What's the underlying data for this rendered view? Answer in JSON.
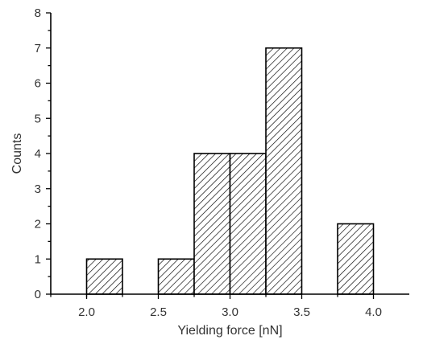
{
  "chart_data": {
    "type": "bar",
    "title": "",
    "xlabel": "Yielding force [nN]",
    "ylabel": "Counts",
    "xlim": [
      1.75,
      4.25
    ],
    "ylim": [
      0,
      8
    ],
    "x_ticks": [
      2.0,
      2.5,
      3.0,
      3.5,
      4.0
    ],
    "x_tick_labels": [
      "2.0",
      "2.5",
      "3.0",
      "3.5",
      "4.0"
    ],
    "y_ticks": [
      0,
      1,
      2,
      3,
      4,
      5,
      6,
      7,
      8
    ],
    "y_tick_labels": [
      "0",
      "1",
      "2",
      "3",
      "4",
      "5",
      "6",
      "7",
      "8"
    ],
    "bin_width": 0.25,
    "bins": [
      {
        "start": 2.0,
        "end": 2.25,
        "count": 1
      },
      {
        "start": 2.5,
        "end": 2.75,
        "count": 1
      },
      {
        "start": 2.75,
        "end": 3.0,
        "count": 4
      },
      {
        "start": 3.0,
        "end": 3.25,
        "count": 4
      },
      {
        "start": 3.25,
        "end": 3.5,
        "count": 7
      },
      {
        "start": 3.75,
        "end": 4.0,
        "count": 2
      }
    ],
    "fill_pattern": "diagonal-hatch",
    "bar_edge_color": "#000000",
    "grid": false,
    "legend": "none"
  }
}
